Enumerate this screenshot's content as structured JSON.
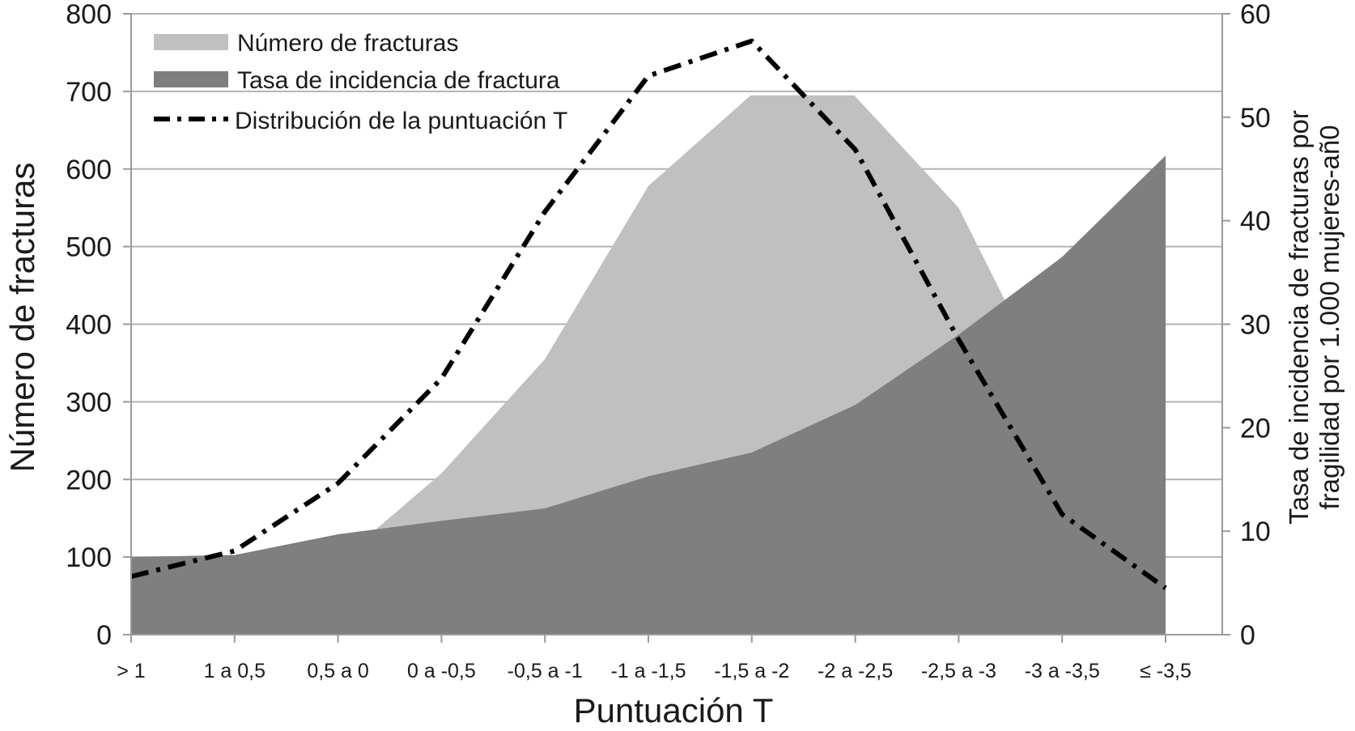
{
  "chart_data": {
    "type": "area",
    "categories": [
      "> 1",
      "1 a 0,5",
      "0,5 a  0",
      "0 a -0,5",
      "-0,5 a -1",
      "-1 a -1,5",
      "-1,5 a -2",
      "-2 a -2,5",
      "-2,5 a -3",
      "-3 a -3,5",
      "≤ -3,5"
    ],
    "xlabel": "Puntuación T",
    "ylabel_left": "Número de fracturas",
    "ylabel_right_line1": "Tasa de incidencia de fracturas por",
    "ylabel_right_line2": "fragilidad por 1.000 mujeres-añ0",
    "ylim_left": [
      0,
      800
    ],
    "ylim_right": [
      0,
      60
    ],
    "yticks_left": [
      "0",
      "100",
      "200",
      "300",
      "400",
      "500",
      "600",
      "700",
      "800"
    ],
    "yticks_right": [
      "0",
      "10",
      "20",
      "30",
      "40",
      "50",
      "60"
    ],
    "grid": true,
    "legend_position": "top-left",
    "series": [
      {
        "name": "Número de fracturas",
        "axis": "left",
        "color": "#c0c0c0",
        "x": [
          0,
          1,
          2.3,
          3,
          4,
          5,
          5.99,
          6.99,
          8,
          8.45,
          9,
          10
        ],
        "values": [
          100,
          100,
          128,
          208,
          355,
          578,
          695,
          695,
          550,
          430,
          320,
          110
        ]
      },
      {
        "name": "Tasa de incidencia de fracturas",
        "axis": "right",
        "color": "#7f7f7f",
        "x": [
          0,
          1,
          2,
          3,
          4,
          5,
          6,
          7,
          8,
          9,
          10
        ],
        "values": [
          7.5,
          7.7,
          9.7,
          11,
          12.2,
          15.3,
          17.6,
          22.2,
          29,
          36.5,
          46.3
        ]
      },
      {
        "name": "Distribución de la puntuación T",
        "axis": "left",
        "color": "#000000",
        "style": "dash-dot",
        "x": [
          0,
          1,
          2,
          3,
          4,
          5,
          6,
          7,
          8,
          9,
          10
        ],
        "values": [
          75,
          108,
          195,
          330,
          545,
          720,
          765,
          625,
          380,
          155,
          60
        ]
      }
    ],
    "legend": {
      "bar_fracturas": "Número de fracturas",
      "tasa": "Tasa de incidencia de fractura",
      "distribucion": "Distribución de la puntuación T"
    }
  }
}
